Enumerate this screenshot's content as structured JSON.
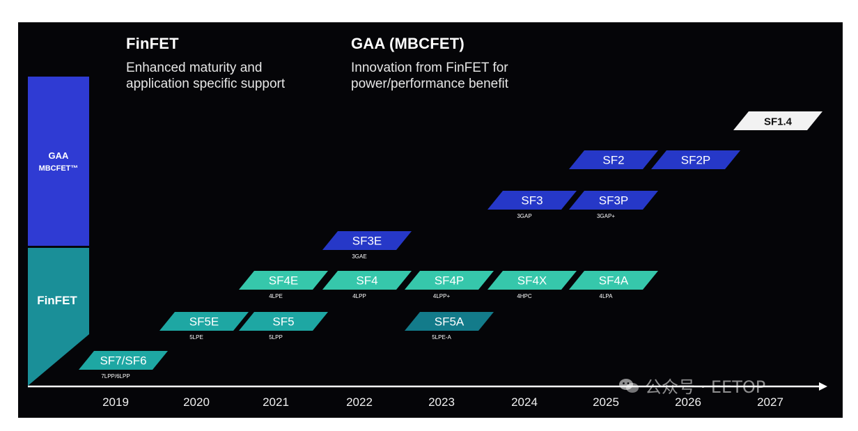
{
  "headings": {
    "finfet": {
      "title": "FinFET",
      "line1": "Enhanced maturity and",
      "line2": "application specific support"
    },
    "gaa": {
      "title": "GAA (MBCFET)",
      "line1": "Innovation from FinFET for",
      "line2": "power/performance benefit"
    }
  },
  "categories": [
    {
      "id": "gaa",
      "line1": "GAA",
      "line2": "MBCFET™"
    },
    {
      "id": "finfet",
      "line1": "FinFET"
    }
  ],
  "years": [
    "2019",
    "2020",
    "2021",
    "2022",
    "2023",
    "2024",
    "2025",
    "2026",
    "2027"
  ],
  "nodes": [
    {
      "name": "SF7/SF6",
      "sub": "7LPP/6LPP",
      "year": "2019",
      "family": "finfet"
    },
    {
      "name": "SF5E",
      "sub": "5LPE",
      "year": "2020",
      "family": "finfet"
    },
    {
      "name": "SF5",
      "sub": "5LPP",
      "year": "2021",
      "family": "finfet"
    },
    {
      "name": "SF4E",
      "sub": "4LPE",
      "year": "2021",
      "family": "finfet"
    },
    {
      "name": "SF4",
      "sub": "4LPP",
      "year": "2022",
      "family": "finfet"
    },
    {
      "name": "SF3E",
      "sub": "3GAE",
      "year": "2022",
      "family": "gaa"
    },
    {
      "name": "SF4P",
      "sub": "4LPP+",
      "year": "2023",
      "family": "finfet"
    },
    {
      "name": "SF5A",
      "sub": "5LPE-A",
      "year": "2023",
      "family": "finfet"
    },
    {
      "name": "SF4X",
      "sub": "4HPC",
      "year": "2024",
      "family": "finfet"
    },
    {
      "name": "SF3",
      "sub": "3GAP",
      "year": "2024",
      "family": "gaa"
    },
    {
      "name": "SF4A",
      "sub": "4LPA",
      "year": "2025",
      "family": "finfet"
    },
    {
      "name": "SF3P",
      "sub": "3GAP+",
      "year": "2025",
      "family": "gaa"
    },
    {
      "name": "SF2",
      "sub": "",
      "year": "2025",
      "family": "gaa"
    },
    {
      "name": "SF2P",
      "sub": "",
      "year": "2026",
      "family": "gaa"
    },
    {
      "name": "SF1.4",
      "sub": "",
      "year": "2027",
      "family": "future"
    }
  ],
  "watermark": {
    "text": "公众号 · EETOP",
    "icon": "wechat-icon"
  },
  "colors": {
    "background": "#050508",
    "gaa_bar": "#2f3bd3",
    "gaa_node": "#2638c8",
    "finfet_bar": "#1a8f98",
    "finfet_node_teal": "#1ea7a3",
    "finfet_node_mint": "#36c7ab",
    "finfet_node_deep": "#137b8a",
    "future_node": "#f2f2f2"
  }
}
